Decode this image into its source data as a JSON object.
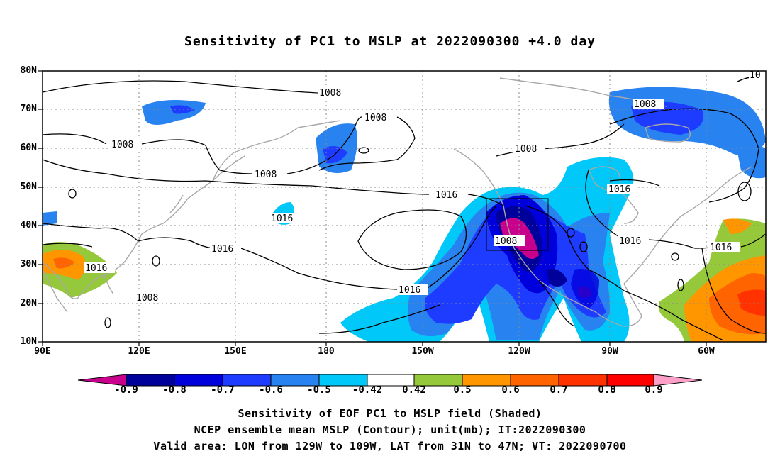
{
  "title": "Sensitivity of PC1 to MSLP at 2022090300 +4.0 day",
  "map": {
    "lat_labels": [
      "80N",
      "70N",
      "60N",
      "50N",
      "40N",
      "30N",
      "20N",
      "10N"
    ],
    "lon_labels": [
      "90E",
      "120E",
      "150E",
      "180",
      "150W",
      "120W",
      "90W",
      "60W"
    ],
    "contour_interval_labels": [
      "1008",
      "1008",
      "1008",
      "1008",
      "1016",
      "1016",
      "1016",
      "1016",
      "1016",
      "1016",
      "1008",
      "1008",
      "1016",
      "1008",
      "1016",
      "10"
    ],
    "box": {
      "lon_from": "129W",
      "lon_to": "109W",
      "lat_from": "31N",
      "lat_to": "47N"
    }
  },
  "colorbar": {
    "labels": [
      "-0.9",
      "-0.8",
      "-0.7",
      "-0.6",
      "-0.5",
      "-0.42",
      "0.42",
      "0.5",
      "0.6",
      "0.7",
      "0.8",
      "0.9"
    ],
    "colors": [
      "#c8008c",
      "#00009a",
      "#0000dc",
      "#1e3cff",
      "#2882f0",
      "#00c8f8",
      "#ffffff",
      "#96c83c",
      "#ff9600",
      "#ff6400",
      "#ff3200",
      "#ff0000",
      "#ffa0c8"
    ]
  },
  "captions": {
    "line1": "Sensitivity of EOF PC1 to MSLP field (Shaded)",
    "line2": "NCEP ensemble mean MSLP (Contour); unit(mb); IT:2022090300",
    "line3": "Valid area: LON from 129W to 109W, LAT from 31N to 47N; VT: 2022090700"
  }
}
